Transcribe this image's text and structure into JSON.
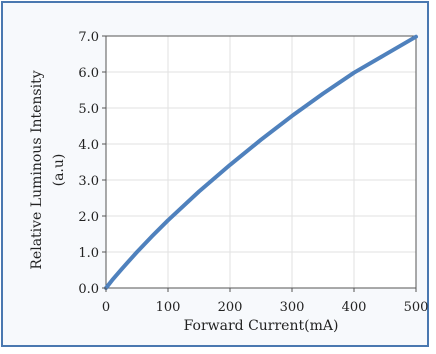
{
  "chart_data": {
    "type": "line",
    "title": "",
    "xlabel": "Forward Current(mA)",
    "ylabel": "Relative  Luminous Intensity",
    "ylabel_unit": "(a.u)",
    "xlim": [
      0,
      500
    ],
    "ylim": [
      0,
      7
    ],
    "x_ticks": [
      "0",
      "100",
      "200",
      "300",
      "400",
      "500"
    ],
    "y_ticks": [
      "0.0",
      "1.0",
      "2.0",
      "3.0",
      "4.0",
      "5.0",
      "6.0",
      "7.0"
    ],
    "grid": true,
    "series": [
      {
        "color": "#4f81bd",
        "x": [
          0,
          10,
          25,
          50,
          75,
          100,
          150,
          200,
          250,
          300,
          350,
          400,
          450,
          500
        ],
        "y": [
          0.0,
          0.22,
          0.52,
          1.0,
          1.45,
          1.88,
          2.68,
          3.42,
          4.12,
          4.78,
          5.4,
          5.98,
          6.48,
          6.98
        ]
      }
    ]
  }
}
